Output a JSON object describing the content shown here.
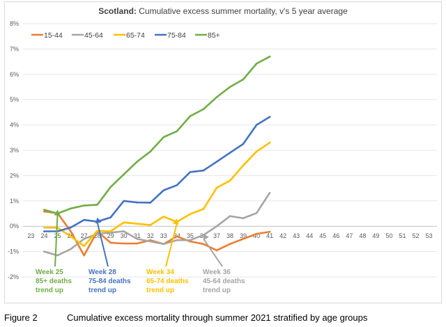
{
  "chart_data": {
    "type": "line",
    "title_bold": "Scotland:",
    "title_rest": " Cumulative excess summer mortality, v's 5 year average",
    "xlabel": "",
    "ylabel": "",
    "x_ticks": [
      23,
      24,
      25,
      26,
      27,
      28,
      29,
      30,
      31,
      32,
      33,
      34,
      35,
      36,
      37,
      38,
      39,
      40,
      41,
      42,
      43,
      44,
      45,
      46,
      47,
      48,
      49,
      50,
      51,
      52,
      53
    ],
    "x_tick_labels": [
      "23",
      "24",
      "25",
      "26",
      "27",
      "28",
      "29",
      "30",
      "31",
      "32",
      "33",
      "34",
      "35",
      "36",
      "37",
      "38",
      "39",
      "40",
      "41",
      "42",
      "43",
      "44",
      "45",
      "46",
      "47",
      "48",
      "49",
      "50",
      "51",
      "52",
      "53"
    ],
    "y_ticks": [
      -2,
      -1,
      0,
      1,
      2,
      3,
      4,
      5,
      6,
      7,
      8
    ],
    "y_tick_labels": [
      "-2%",
      "-1%",
      "0%",
      "1%",
      "2%",
      "3%",
      "4%",
      "5%",
      "6%",
      "7%",
      "8%"
    ],
    "xlim": [
      22.4,
      53.6
    ],
    "ylim": [
      -2,
      8
    ],
    "grid": "horizontal",
    "legend_position": "top-left",
    "x": [
      24,
      25,
      26,
      27,
      28,
      29,
      30,
      31,
      32,
      33,
      34,
      35,
      36,
      37,
      38,
      39,
      40,
      41
    ],
    "series": [
      {
        "name": "15-44",
        "color": "#ED7D31",
        "values": [
          0.58,
          0.52,
          -0.2,
          -1.15,
          -0.2,
          -0.65,
          -0.68,
          -0.68,
          -0.55,
          -0.7,
          -0.4,
          -0.6,
          -0.7,
          -0.95,
          -0.7,
          -0.5,
          -0.3,
          -0.22
        ]
      },
      {
        "name": "45-64",
        "color": "#A5A5A5",
        "values": [
          -1.0,
          -1.15,
          -0.9,
          -0.5,
          -0.3,
          -0.25,
          -0.2,
          -0.5,
          -0.6,
          -0.7,
          -0.55,
          -0.55,
          -0.35,
          0.0,
          0.4,
          0.32,
          0.52,
          1.32
        ]
      },
      {
        "name": "65-74",
        "color": "#FFC000",
        "values": [
          -0.05,
          -0.06,
          -0.4,
          -0.78,
          -0.18,
          -0.2,
          0.15,
          0.1,
          0.05,
          0.38,
          0.17,
          0.48,
          0.68,
          1.52,
          1.8,
          2.4,
          2.95,
          3.3
        ]
      },
      {
        "name": "75-84",
        "color": "#4472C4",
        "values": [
          -0.2,
          -0.2,
          -0.05,
          0.25,
          0.18,
          0.35,
          1.0,
          0.94,
          0.93,
          1.42,
          1.62,
          2.14,
          2.2,
          2.55,
          2.9,
          3.25,
          4.0,
          4.32
        ]
      },
      {
        "name": "85+",
        "color": "#70AD47",
        "values": [
          0.65,
          0.5,
          0.7,
          0.82,
          0.85,
          1.55,
          2.05,
          2.55,
          2.95,
          3.52,
          3.75,
          4.35,
          4.62,
          5.1,
          5.5,
          5.8,
          6.42,
          6.7
        ]
      }
    ],
    "annotations": [
      {
        "lines": [
          "Week 25",
          "85+ deaths",
          "trend up"
        ],
        "color": "#70AD47",
        "x": 25,
        "y": 0.65
      },
      {
        "lines": [
          "Week 28",
          "75-84 deaths",
          "trend up"
        ],
        "color": "#4472C4",
        "x": 28,
        "y": 0.35
      },
      {
        "lines": [
          "Week 34",
          "65-74 deaths",
          "trend up"
        ],
        "color": "#FFC000",
        "x": 34,
        "y": 0.3
      },
      {
        "lines": [
          "Week 36",
          "45-64 deaths",
          "trend up"
        ],
        "color": "#A5A5A5",
        "x": 36,
        "y": -0.3
      }
    ]
  },
  "caption": {
    "label": "Figure 2",
    "text": "Cumulative excess mortality through summer 2021 stratified by age groups"
  }
}
